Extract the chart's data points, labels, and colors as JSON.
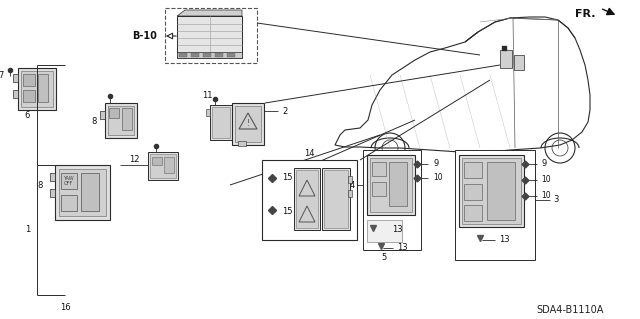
{
  "bg_color": "#ffffff",
  "diagram_code": "SDA4-B1110A",
  "fr_label": "FR.",
  "b10_label": "B-10",
  "fig_width": 6.4,
  "fig_height": 3.19,
  "dpi": 100,
  "line_color": "#2a2a2a",
  "part_color": "#c8c8c8",
  "dark_color": "#555555"
}
